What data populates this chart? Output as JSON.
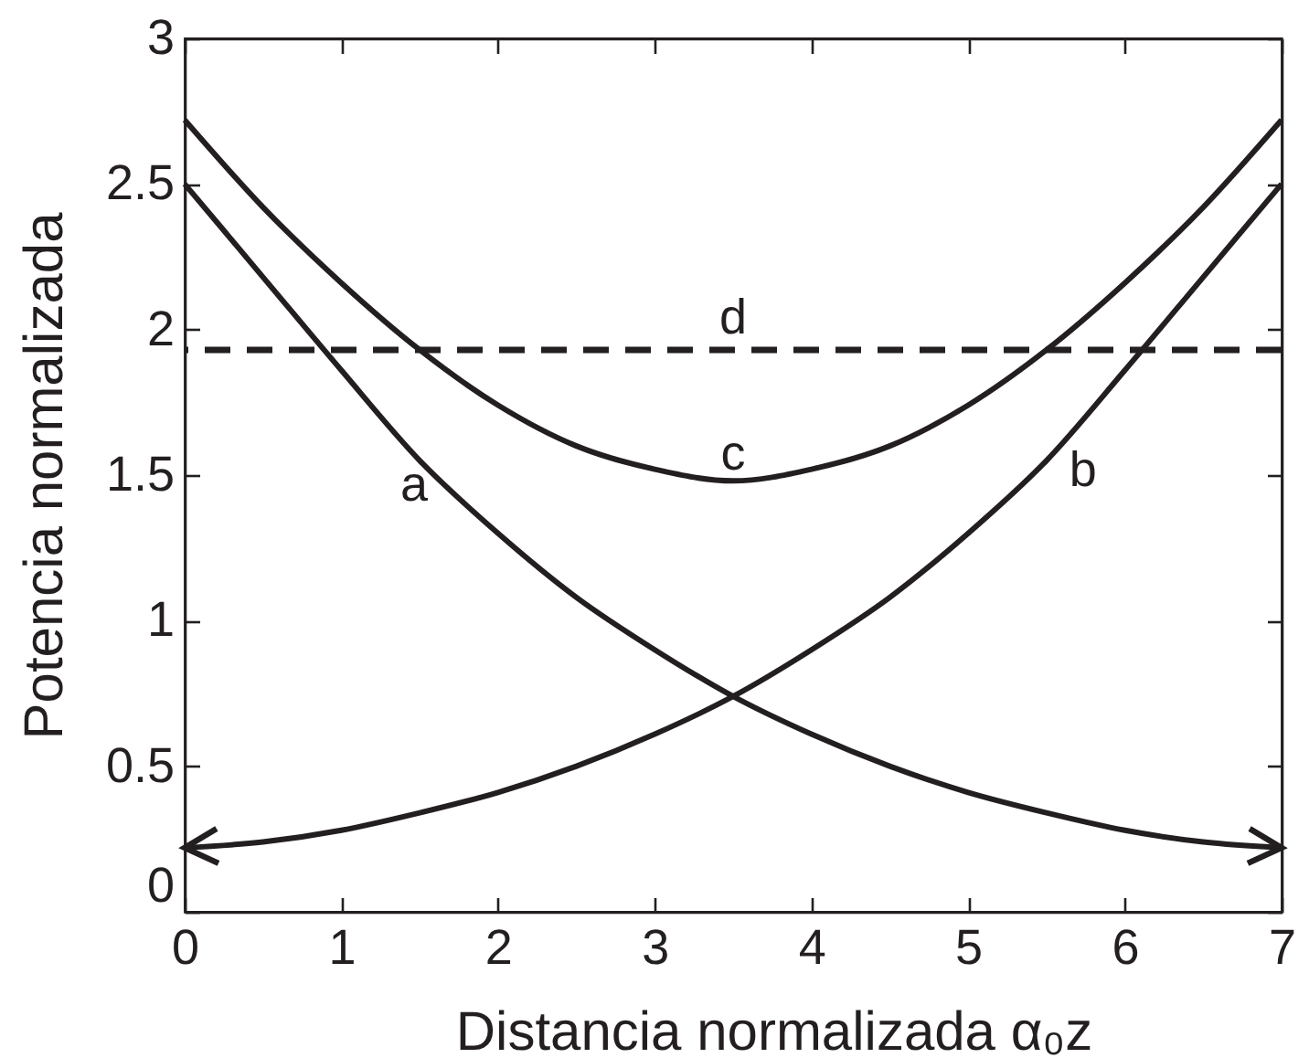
{
  "chart_data": {
    "type": "line",
    "xlabel": "Distancia normalizada  α₀z",
    "ylabel": "Potencia normalizada",
    "x": [
      0,
      0.5,
      1,
      1.5,
      2,
      2.5,
      3,
      3.5,
      4,
      4.5,
      5,
      5.5,
      6,
      6.5,
      7
    ],
    "xlim": [
      0,
      7
    ],
    "xticks": [
      0,
      1,
      2,
      3,
      4,
      5,
      6,
      7
    ],
    "ylim": [
      0,
      3
    ],
    "yticks": [
      0,
      0.5,
      1,
      1.5,
      2,
      2.5,
      3
    ],
    "grid": false,
    "legend": false,
    "marker": "none",
    "line_style": "solid",
    "series": [
      {
        "name": "a",
        "color": "#231f20",
        "values": [
          2.5,
          2.18,
          1.86,
          1.55,
          1.3,
          1.08,
          0.9,
          0.74,
          0.61,
          0.5,
          0.41,
          0.34,
          0.28,
          0.24,
          0.22
        ]
      },
      {
        "name": "b",
        "color": "#231f20",
        "values": [
          0.22,
          0.24,
          0.28,
          0.34,
          0.41,
          0.5,
          0.61,
          0.74,
          0.9,
          1.08,
          1.3,
          1.55,
          1.86,
          2.18,
          2.5
        ]
      },
      {
        "name": "c",
        "color": "#231f20",
        "values": [
          2.72,
          2.42,
          2.16,
          1.93,
          1.74,
          1.6,
          1.52,
          1.48,
          1.52,
          1.6,
          1.74,
          1.93,
          2.16,
          2.42,
          2.72
        ]
      }
    ],
    "ref_lines": [
      {
        "axis": "y",
        "value": 1.93,
        "label": "d",
        "color": "#231f20",
        "line_style": "dashed"
      }
    ]
  }
}
